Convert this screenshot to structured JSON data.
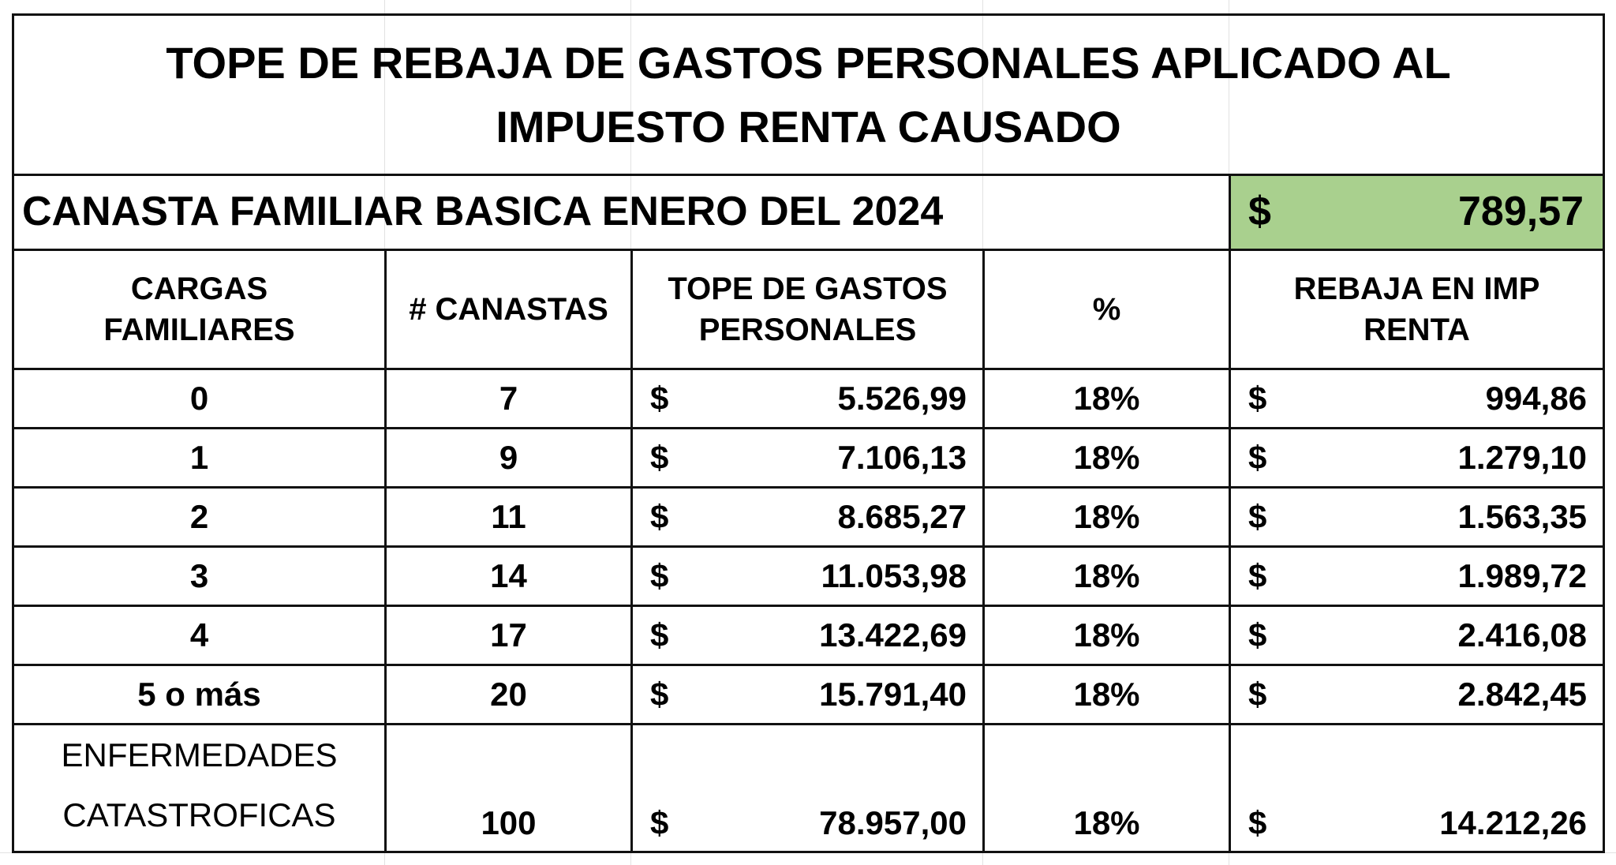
{
  "title": "TOPE DE REBAJA DE GASTOS PERSONALES APLICADO AL IMPUESTO RENTA CAUSADO",
  "title_line1": "TOPE DE REBAJA DE GASTOS PERSONALES APLICADO AL",
  "title_line2": "IMPUESTO RENTA CAUSADO",
  "canasta": {
    "label": "CANASTA FAMILIAR BASICA ENERO DEL 2024",
    "currency": "$",
    "value": "789,57",
    "highlight_color": "#a9d08e"
  },
  "headers": {
    "cargas_line1": "CARGAS",
    "cargas_line2": "FAMILIARES",
    "canastas": "# CANASTAS",
    "tope_line1": "TOPE DE GASTOS",
    "tope_line2": "PERSONALES",
    "percent": "%",
    "rebaja_line1": "REBAJA EN IMP",
    "rebaja_line2": "RENTA"
  },
  "rows": [
    {
      "cargas": "0",
      "canastas": "7",
      "tope": "5.526,99",
      "pct": "18%",
      "rebaja": "994,86"
    },
    {
      "cargas": "1",
      "canastas": "9",
      "tope": "7.106,13",
      "pct": "18%",
      "rebaja": "1.279,10"
    },
    {
      "cargas": "2",
      "canastas": "11",
      "tope": "8.685,27",
      "pct": "18%",
      "rebaja": "1.563,35"
    },
    {
      "cargas": "3",
      "canastas": "14",
      "tope": "11.053,98",
      "pct": "18%",
      "rebaja": "1.989,72"
    },
    {
      "cargas": "4",
      "canastas": "17",
      "tope": "13.422,69",
      "pct": "18%",
      "rebaja": "2.416,08"
    },
    {
      "cargas": "5 o más",
      "canastas": "20",
      "tope": "15.791,40",
      "pct": "18%",
      "rebaja": "2.842,45"
    }
  ],
  "enfermedades": {
    "label_line1": "ENFERMEDADES",
    "label_line2": "CATASTROFICAS",
    "canastas": "100",
    "tope": "78.957,00",
    "pct": "18%",
    "rebaja": "14.212,26"
  },
  "currency_symbol": "$"
}
